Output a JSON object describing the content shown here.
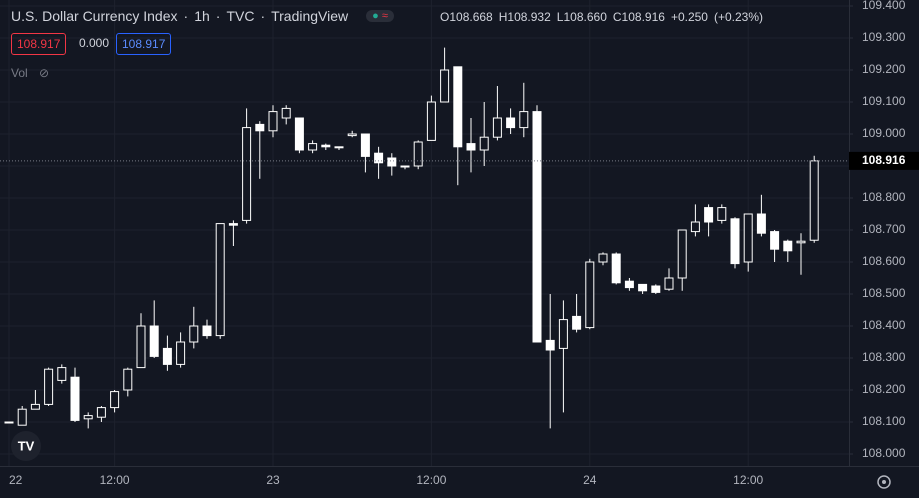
{
  "chart_data": {
    "type": "candlestick",
    "symbol": "U.S. Dollar Currency Index",
    "interval": "1h",
    "exchange": "TVC",
    "source": "TradingView",
    "ohlc_legend": {
      "open_label": "O",
      "open": "108.668",
      "high_label": "H",
      "high": "108.932",
      "low_label": "L",
      "low": "108.660",
      "close_label": "C",
      "close": "108.916",
      "change": "+0.250",
      "change_percent": "(+0.23%)"
    },
    "sell": "108.917",
    "spread": "0.000",
    "buy": "108.917",
    "volume_label": "Vol",
    "last_price": {
      "value": 108.916,
      "label": "108.916"
    },
    "categories": [
      "22",
      null,
      null,
      null,
      null,
      null,
      null,
      null,
      "12:00",
      null,
      null,
      null,
      null,
      null,
      null,
      null,
      null,
      null,
      null,
      null,
      "23",
      null,
      null,
      null,
      null,
      null,
      null,
      null,
      null,
      null,
      null,
      null,
      "12:00",
      null,
      null,
      null,
      null,
      null,
      null,
      null,
      null,
      null,
      null,
      null,
      "24",
      null,
      null,
      null,
      null,
      null,
      null,
      null,
      null,
      null,
      null,
      null,
      "12:00",
      null,
      null,
      null,
      null,
      null
    ],
    "series": [
      {
        "name": "open",
        "values": [
          108.1,
          108.09,
          108.14,
          108.155,
          108.23,
          108.24,
          108.11,
          108.115,
          108.145,
          108.2,
          108.27,
          108.4,
          108.33,
          108.28,
          108.35,
          108.4,
          108.37,
          108.72,
          108.73,
          109.03,
          109.01,
          109.05,
          109.05,
          108.95,
          108.965,
          108.96,
          108.995,
          109.0,
          108.94,
          108.925,
          108.9,
          108.9,
          108.98,
          109.1,
          109.21,
          108.97,
          108.95,
          108.99,
          109.05,
          109.02,
          109.07,
          108.355,
          108.33,
          108.43,
          108.395,
          108.6,
          108.625,
          108.54,
          108.53,
          108.525,
          108.515,
          108.55,
          108.695,
          108.77,
          108.73,
          108.735,
          108.6,
          108.75,
          108.695,
          108.665,
          108.66,
          108.668
        ]
      },
      {
        "name": "high",
        "values": [
          108.1,
          108.15,
          108.2,
          108.27,
          108.28,
          108.27,
          108.13,
          108.15,
          108.2,
          108.27,
          108.44,
          108.48,
          108.37,
          108.38,
          108.46,
          108.42,
          108.72,
          108.73,
          109.08,
          109.04,
          109.09,
          109.09,
          109.05,
          108.98,
          108.97,
          108.96,
          109.01,
          109.0,
          108.96,
          108.94,
          108.9,
          108.98,
          109.12,
          109.27,
          109.21,
          109.05,
          109.1,
          109.15,
          109.08,
          109.16,
          109.09,
          108.5,
          108.48,
          108.5,
          108.61,
          108.63,
          108.63,
          108.55,
          108.53,
          108.53,
          108.58,
          108.7,
          108.78,
          108.78,
          108.78,
          108.74,
          108.75,
          108.81,
          108.7,
          108.67,
          108.69,
          108.932
        ]
      },
      {
        "name": "low",
        "values": [
          108.1,
          108.09,
          108.14,
          108.15,
          108.22,
          108.1,
          108.08,
          108.1,
          108.13,
          108.18,
          108.27,
          108.3,
          108.26,
          108.27,
          108.33,
          108.36,
          108.36,
          108.65,
          108.72,
          108.86,
          108.99,
          109.03,
          108.94,
          108.94,
          108.95,
          108.95,
          108.99,
          108.88,
          108.86,
          108.87,
          108.89,
          108.89,
          108.98,
          109.1,
          108.84,
          108.88,
          108.9,
          108.98,
          109.0,
          108.99,
          108.35,
          108.08,
          108.13,
          108.38,
          108.39,
          108.59,
          108.53,
          108.51,
          108.5,
          108.5,
          108.51,
          108.51,
          108.68,
          108.68,
          108.72,
          108.58,
          108.57,
          108.68,
          108.6,
          108.6,
          108.56,
          108.66
        ]
      },
      {
        "name": "close",
        "values": [
          108.1,
          108.14,
          108.155,
          108.265,
          108.27,
          108.105,
          108.12,
          108.145,
          108.195,
          108.265,
          108.4,
          108.305,
          108.28,
          108.35,
          108.4,
          108.37,
          108.72,
          108.715,
          109.02,
          109.01,
          109.07,
          109.08,
          108.95,
          108.97,
          108.96,
          108.96,
          109.0,
          108.93,
          108.91,
          108.9,
          108.9,
          108.975,
          109.1,
          109.2,
          108.96,
          108.95,
          108.99,
          109.05,
          109.02,
          109.07,
          108.35,
          108.325,
          108.42,
          108.39,
          108.6,
          108.625,
          108.535,
          108.52,
          108.51,
          108.505,
          108.55,
          108.7,
          108.725,
          108.725,
          108.77,
          108.595,
          108.75,
          108.69,
          108.64,
          108.635,
          108.665,
          108.916
        ]
      }
    ],
    "up_color": "#131722",
    "down_color": "#ffffff",
    "wick_color": "#ffffff",
    "ylim": [
      108.0,
      109.4
    ],
    "yticks": [
      {
        "value": 108.0,
        "label": "108.000"
      },
      {
        "value": 108.1,
        "label": "108.100"
      },
      {
        "value": 108.2,
        "label": "108.200"
      },
      {
        "value": 108.3,
        "label": "108.300"
      },
      {
        "value": 108.4,
        "label": "108.400"
      },
      {
        "value": 108.5,
        "label": "108.500"
      },
      {
        "value": 108.6,
        "label": "108.600"
      },
      {
        "value": 108.7,
        "label": "108.700"
      },
      {
        "value": 108.8,
        "label": "108.800"
      },
      {
        "value": 108.9,
        "label": "108.900"
      },
      {
        "value": 109.0,
        "label": "109.000"
      },
      {
        "value": 109.1,
        "label": "109.100"
      },
      {
        "value": 109.2,
        "label": "109.200"
      },
      {
        "value": 109.3,
        "label": "109.300"
      },
      {
        "value": 109.4,
        "label": "109.400"
      }
    ],
    "grid": true
  }
}
